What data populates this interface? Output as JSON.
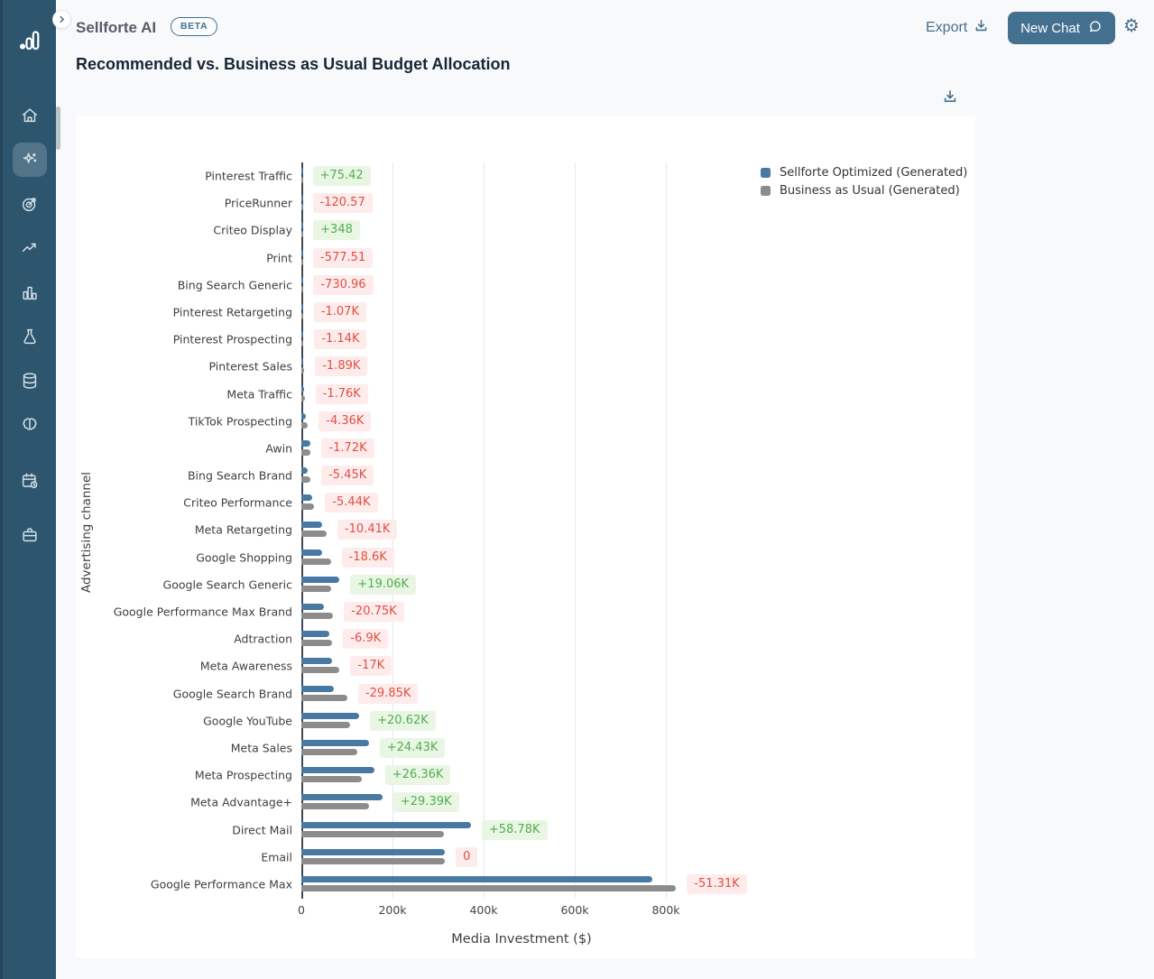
{
  "header": {
    "app_name": "Sellforte AI",
    "beta_badge": "BETA",
    "page_title": "Recommended vs. Business as Usual Budget Allocation",
    "export_label": "Export",
    "new_chat_label": "New Chat",
    "gear_icon": "gear-icon",
    "export_icon": "download-icon",
    "new_chat_icon": "chat-bubble-icon"
  },
  "sidebar": {
    "logo_icon": "sellforte-logo-icon",
    "expand_icon": "chevron-right-icon",
    "items": [
      {
        "icon": "home-icon",
        "active": false
      },
      {
        "icon": "sparkles-icon",
        "active": true
      },
      {
        "icon": "target-goal-icon",
        "active": false
      },
      {
        "icon": "trending-up-icon",
        "active": false
      },
      {
        "icon": "bar-chart-icon",
        "active": false
      },
      {
        "icon": "flask-icon",
        "active": false
      },
      {
        "icon": "database-icon",
        "active": false
      },
      {
        "icon": "brain-icon",
        "active": false
      },
      {
        "icon": "calendar-clock-icon",
        "active": false
      },
      {
        "icon": "briefcase-icon",
        "active": false
      }
    ]
  },
  "chart_card": {
    "download_icon": "download-icon"
  },
  "colors": {
    "sidebar_bg": "#2d566e",
    "accent": "#44708f",
    "optimized_bar": "#4879a3",
    "bau_bar": "#8c8c8c",
    "positive_text": "#53ae4f",
    "positive_bg": "#e9f6e4",
    "negative_text": "#e04f43",
    "negative_bg": "#fdeceb"
  },
  "chart_data": {
    "type": "bar",
    "orientation": "horizontal",
    "xlabel": "Media Investment ($)",
    "ylabel": "Advertising channel",
    "grid": true,
    "legend_position": "top-right",
    "x_tick_labels": [
      "0",
      "200k",
      "400k",
      "600k",
      "800k"
    ],
    "x_tick_values_k": [
      0,
      200,
      400,
      600,
      800
    ],
    "xlim_k": [
      0,
      966
    ],
    "legend": [
      {
        "label": "Sellforte Optimized (Generated)",
        "color": "#4879a3"
      },
      {
        "label": "Business as Usual (Generated)",
        "color": "#8c8c8c"
      }
    ],
    "categories": [
      "Pinterest Traffic",
      "PriceRunner",
      "Criteo Display",
      "Print",
      "Bing Search Generic",
      "Pinterest Retargeting",
      "Pinterest Prospecting",
      "Pinterest Sales",
      "Meta Traffic",
      "TikTok Prospecting",
      "Awin",
      "Bing Search Brand",
      "Criteo Performance",
      "Meta Retargeting",
      "Google Shopping",
      "Google Search Generic",
      "Google Performance Max Brand",
      "Adtraction",
      "Meta Awareness",
      "Google Search Brand",
      "Google YouTube",
      "Meta Sales",
      "Meta Prospecting",
      "Meta Advantage+",
      "Direct Mail",
      "Email",
      "Google Performance Max"
    ],
    "series": [
      {
        "name": "Sellforte Optimized (Generated)",
        "values_k": [
          1.2,
          1.0,
          2.3,
          1.5,
          2.0,
          2.5,
          3.5,
          4.5,
          5.5,
          10,
          19,
          14.5,
          23,
          45,
          46,
          84,
          49,
          61,
          67,
          71,
          127,
          148,
          160,
          178,
          372,
          315,
          771
        ]
      },
      {
        "name": "Business as Usual (Generated)",
        "values_k": [
          1.1,
          1.1,
          2.0,
          2.1,
          2.7,
          3.6,
          4.6,
          6.4,
          7.3,
          14.4,
          20.7,
          20,
          28.4,
          55.4,
          64.6,
          64.9,
          69.8,
          67.9,
          84,
          100.9,
          106.4,
          123.6,
          133.6,
          148.6,
          313.2,
          315,
          822.3
        ]
      }
    ],
    "delta_labels": [
      "+75.42",
      "-120.57",
      "+348",
      "-577.51",
      "-730.96",
      "-1.07K",
      "-1.14K",
      "-1.89K",
      "-1.76K",
      "-4.36K",
      "-1.72K",
      "-5.45K",
      "-5.44K",
      "-10.41K",
      "-18.6K",
      "+19.06K",
      "-20.75K",
      "-6.9K",
      "-17K",
      "-29.85K",
      "+20.62K",
      "+24.43K",
      "+26.36K",
      "+29.39K",
      "+58.78K",
      "0",
      "-51.31K"
    ]
  }
}
